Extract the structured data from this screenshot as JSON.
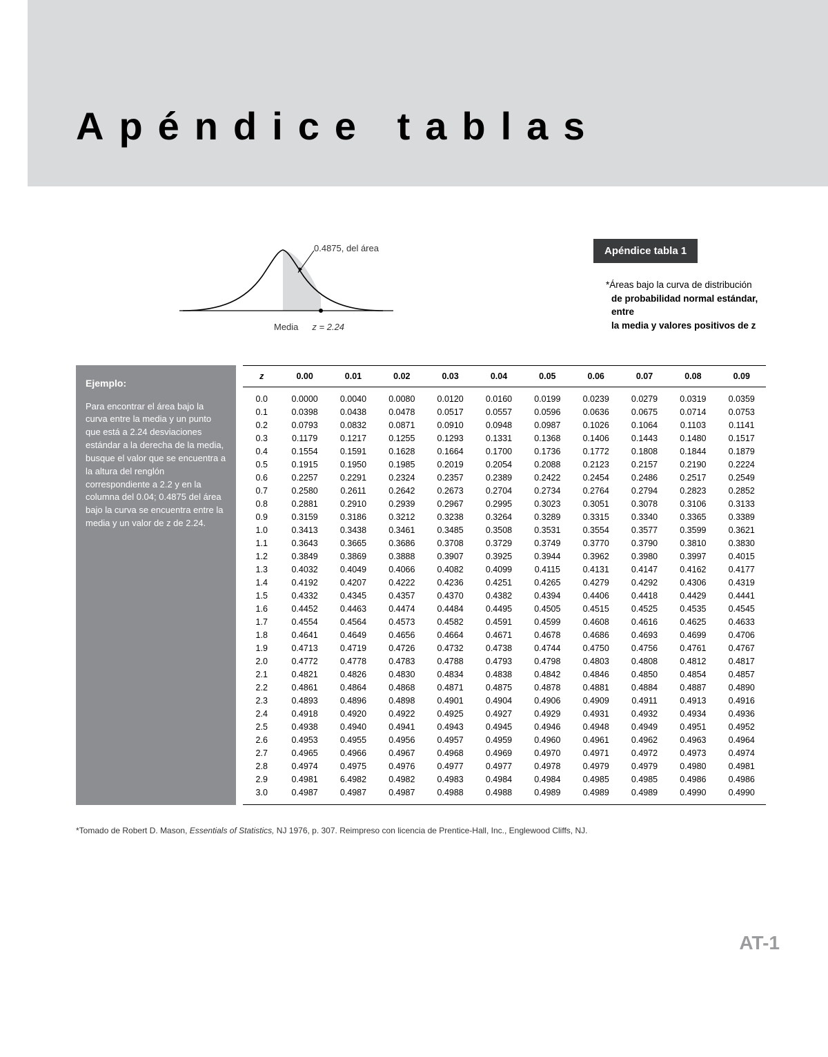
{
  "header": {
    "title": "Apéndice tablas"
  },
  "curve": {
    "annotation": "0.4875, del área",
    "media_label": "Media",
    "z_label": "z = 2.24",
    "shaded_fill": "#d9dadc",
    "stroke": "#000000"
  },
  "badge": {
    "text": "Apéndice tabla 1"
  },
  "description": {
    "line1": "*Áreas bajo la curva de distribución",
    "line2": "de probabilidad normal estándar, entre",
    "line3": "la media y valores positivos de z"
  },
  "example": {
    "title": "Ejemplo:",
    "body": "Para encontrar el área bajo la curva entre la media y un punto que está a 2.24 desviaciones estándar a la derecha de la media, busque el valor que se encuentra a la altura del renglón correspondiente a 2.2 y en la columna del 0.04; 0.4875 del área bajo la curva se encuentra entre la media y un valor de z de 2.24."
  },
  "table": {
    "columns": [
      "z",
      "0.00",
      "0.01",
      "0.02",
      "0.03",
      "0.04",
      "0.05",
      "0.06",
      "0.07",
      "0.08",
      "0.09"
    ],
    "rows": [
      [
        "0.0",
        "0.0000",
        "0.0040",
        "0.0080",
        "0.0120",
        "0.0160",
        "0.0199",
        "0.0239",
        "0.0279",
        "0.0319",
        "0.0359"
      ],
      [
        "0.1",
        "0.0398",
        "0.0438",
        "0.0478",
        "0.0517",
        "0.0557",
        "0.0596",
        "0.0636",
        "0.0675",
        "0.0714",
        "0.0753"
      ],
      [
        "0.2",
        "0.0793",
        "0.0832",
        "0.0871",
        "0.0910",
        "0.0948",
        "0.0987",
        "0.1026",
        "0.1064",
        "0.1103",
        "0.1141"
      ],
      [
        "0.3",
        "0.1179",
        "0.1217",
        "0.1255",
        "0.1293",
        "0.1331",
        "0.1368",
        "0.1406",
        "0.1443",
        "0.1480",
        "0.1517"
      ],
      [
        "0.4",
        "0.1554",
        "0.1591",
        "0.1628",
        "0.1664",
        "0.1700",
        "0.1736",
        "0.1772",
        "0.1808",
        "0.1844",
        "0.1879"
      ],
      [
        "0.5",
        "0.1915",
        "0.1950",
        "0.1985",
        "0.2019",
        "0.2054",
        "0.2088",
        "0.2123",
        "0.2157",
        "0.2190",
        "0.2224"
      ],
      [
        "0.6",
        "0.2257",
        "0.2291",
        "0.2324",
        "0.2357",
        "0.2389",
        "0.2422",
        "0.2454",
        "0.2486",
        "0.2517",
        "0.2549"
      ],
      [
        "0.7",
        "0.2580",
        "0.2611",
        "0.2642",
        "0.2673",
        "0.2704",
        "0.2734",
        "0.2764",
        "0.2794",
        "0.2823",
        "0.2852"
      ],
      [
        "0.8",
        "0.2881",
        "0.2910",
        "0.2939",
        "0.2967",
        "0.2995",
        "0.3023",
        "0.3051",
        "0.3078",
        "0.3106",
        "0.3133"
      ],
      [
        "0.9",
        "0.3159",
        "0.3186",
        "0.3212",
        "0.3238",
        "0.3264",
        "0.3289",
        "0.3315",
        "0.3340",
        "0.3365",
        "0.3389"
      ],
      [
        "1.0",
        "0.3413",
        "0.3438",
        "0.3461",
        "0.3485",
        "0.3508",
        "0.3531",
        "0.3554",
        "0.3577",
        "0.3599",
        "0.3621"
      ],
      [
        "1.1",
        "0.3643",
        "0.3665",
        "0.3686",
        "0.3708",
        "0.3729",
        "0.3749",
        "0.3770",
        "0.3790",
        "0.3810",
        "0.3830"
      ],
      [
        "1.2",
        "0.3849",
        "0.3869",
        "0.3888",
        "0.3907",
        "0.3925",
        "0.3944",
        "0.3962",
        "0.3980",
        "0.3997",
        "0.4015"
      ],
      [
        "1.3",
        "0.4032",
        "0.4049",
        "0.4066",
        "0.4082",
        "0.4099",
        "0.4115",
        "0.4131",
        "0.4147",
        "0.4162",
        "0.4177"
      ],
      [
        "1.4",
        "0.4192",
        "0.4207",
        "0.4222",
        "0.4236",
        "0.4251",
        "0.4265",
        "0.4279",
        "0.4292",
        "0.4306",
        "0.4319"
      ],
      [
        "1.5",
        "0.4332",
        "0.4345",
        "0.4357",
        "0.4370",
        "0.4382",
        "0.4394",
        "0.4406",
        "0.4418",
        "0.4429",
        "0.4441"
      ],
      [
        "1.6",
        "0.4452",
        "0.4463",
        "0.4474",
        "0.4484",
        "0.4495",
        "0.4505",
        "0.4515",
        "0.4525",
        "0.4535",
        "0.4545"
      ],
      [
        "1.7",
        "0.4554",
        "0.4564",
        "0.4573",
        "0.4582",
        "0.4591",
        "0.4599",
        "0.4608",
        "0.4616",
        "0.4625",
        "0.4633"
      ],
      [
        "1.8",
        "0.4641",
        "0.4649",
        "0.4656",
        "0.4664",
        "0.4671",
        "0.4678",
        "0.4686",
        "0.4693",
        "0.4699",
        "0.4706"
      ],
      [
        "1.9",
        "0.4713",
        "0.4719",
        "0.4726",
        "0.4732",
        "0.4738",
        "0.4744",
        "0.4750",
        "0.4756",
        "0.4761",
        "0.4767"
      ],
      [
        "2.0",
        "0.4772",
        "0.4778",
        "0.4783",
        "0.4788",
        "0.4793",
        "0.4798",
        "0.4803",
        "0.4808",
        "0.4812",
        "0.4817"
      ],
      [
        "2.1",
        "0.4821",
        "0.4826",
        "0.4830",
        "0.4834",
        "0.4838",
        "0.4842",
        "0.4846",
        "0.4850",
        "0.4854",
        "0.4857"
      ],
      [
        "2.2",
        "0.4861",
        "0.4864",
        "0.4868",
        "0.4871",
        "0.4875",
        "0.4878",
        "0.4881",
        "0.4884",
        "0.4887",
        "0.4890"
      ],
      [
        "2.3",
        "0.4893",
        "0.4896",
        "0.4898",
        "0.4901",
        "0.4904",
        "0.4906",
        "0.4909",
        "0.4911",
        "0.4913",
        "0.4916"
      ],
      [
        "2.4",
        "0.4918",
        "0.4920",
        "0.4922",
        "0.4925",
        "0.4927",
        "0.4929",
        "0.4931",
        "0.4932",
        "0.4934",
        "0.4936"
      ],
      [
        "2.5",
        "0.4938",
        "0.4940",
        "0.4941",
        "0.4943",
        "0.4945",
        "0.4946",
        "0.4948",
        "0.4949",
        "0.4951",
        "0.4952"
      ],
      [
        "2.6",
        "0.4953",
        "0.4955",
        "0.4956",
        "0.4957",
        "0.4959",
        "0.4960",
        "0.4961",
        "0.4962",
        "0.4963",
        "0.4964"
      ],
      [
        "2.7",
        "0.4965",
        "0.4966",
        "0.4967",
        "0.4968",
        "0.4969",
        "0.4970",
        "0.4971",
        "0.4972",
        "0.4973",
        "0.4974"
      ],
      [
        "2.8",
        "0.4974",
        "0.4975",
        "0.4976",
        "0.4977",
        "0.4977",
        "0.4978",
        "0.4979",
        "0.4979",
        "0.4980",
        "0.4981"
      ],
      [
        "2.9",
        "0.4981",
        "6.4982",
        "0.4982",
        "0.4983",
        "0.4984",
        "0.4984",
        "0.4985",
        "0.4985",
        "0.4986",
        "0.4986"
      ],
      [
        "3.0",
        "0.4987",
        "0.4987",
        "0.4987",
        "0.4988",
        "0.4988",
        "0.4989",
        "0.4989",
        "0.4989",
        "0.4990",
        "0.4990"
      ]
    ]
  },
  "footnote": {
    "prefix": "*Tomado de Robert D. Mason, ",
    "title_italic": "Essentials of Statistics,",
    "suffix": " NJ 1976, p. 307. Reimpreso con licencia de Prentice-Hall, Inc., Englewood Cliffs, NJ."
  },
  "page_number": "AT-1",
  "colors": {
    "band": "#d9dadc",
    "example_bg": "#8c8e91",
    "badge_bg": "#3a3b3d",
    "pagenum": "#9a9c9e"
  }
}
